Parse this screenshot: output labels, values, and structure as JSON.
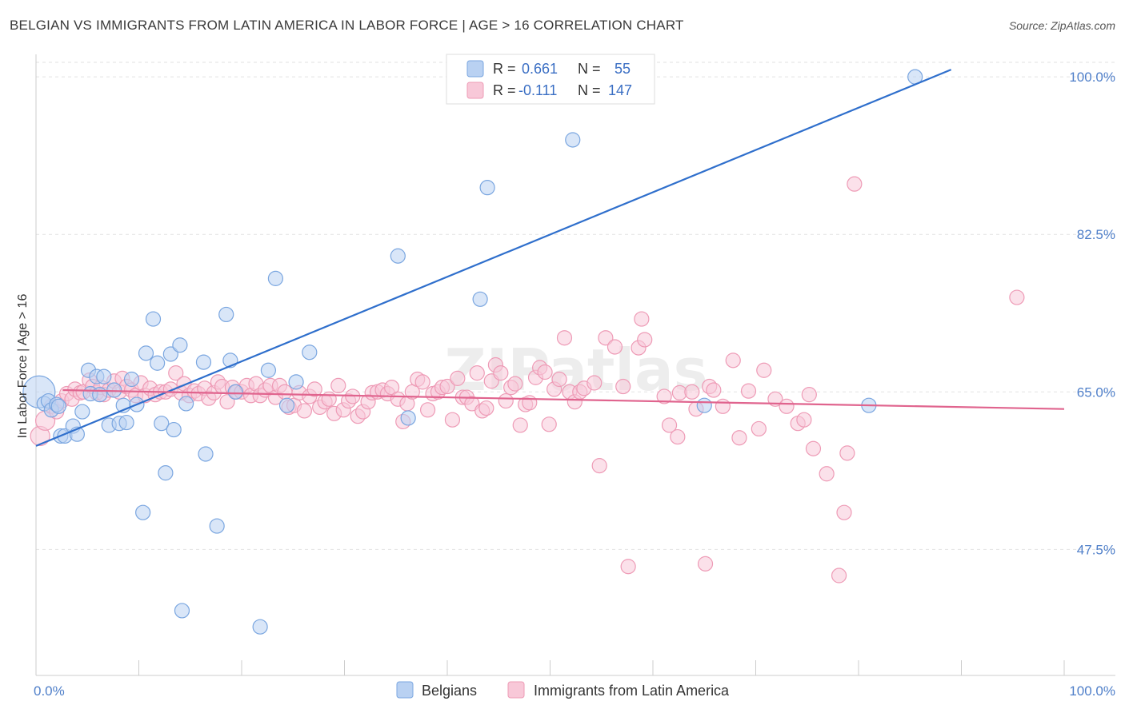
{
  "title": "BELGIAN VS IMMIGRANTS FROM LATIN AMERICA IN LABOR FORCE | AGE > 16 CORRELATION CHART",
  "source": "Source: ZipAtlas.com",
  "watermark": "ZIPatlas",
  "chart_data": {
    "type": "scatter",
    "title": "BELGIAN VS IMMIGRANTS FROM LATIN AMERICA IN LABOR FORCE | AGE > 16 CORRELATION CHART",
    "xlabel": "",
    "ylabel": "In Labor Force | Age > 16",
    "xlim": [
      0,
      100
    ],
    "ylim": [
      33.5,
      102.5
    ],
    "x_tick_labels": [
      "0.0%",
      "100.0%"
    ],
    "y_ticks": [
      47.5,
      65.0,
      82.5,
      100.0
    ],
    "y_tick_labels": [
      "47.5%",
      "65.0%",
      "82.5%",
      "100.0%"
    ],
    "grid": "horizontal dashed",
    "legend_position": "top-center",
    "stats": [
      {
        "r_label": "R =",
        "r": "0.661",
        "n_label": "N =",
        "n": "55"
      },
      {
        "r_label": "R =",
        "r": "-0.111",
        "n_label": "N =",
        "n": "147"
      }
    ],
    "series": [
      {
        "name": "Belgians",
        "color": "#7aa6e0",
        "fill": "#b9d1f2",
        "trend": {
          "x": [
            0,
            89
          ],
          "y": [
            59.0,
            100.8
          ],
          "color": "#2f6fcc"
        },
        "points": [
          [
            0.3,
            65.0
          ],
          [
            0.8,
            63.7
          ],
          [
            1.2,
            64.0
          ],
          [
            1.5,
            63.0
          ],
          [
            2.0,
            63.6
          ],
          [
            2.2,
            63.4
          ],
          [
            2.4,
            60.1
          ],
          [
            2.8,
            60.1
          ],
          [
            3.6,
            61.2
          ],
          [
            4.0,
            60.3
          ],
          [
            4.5,
            62.8
          ],
          [
            5.1,
            67.4
          ],
          [
            5.3,
            64.8
          ],
          [
            5.9,
            66.7
          ],
          [
            6.2,
            64.7
          ],
          [
            6.6,
            66.7
          ],
          [
            7.1,
            61.3
          ],
          [
            7.6,
            65.2
          ],
          [
            8.1,
            61.5
          ],
          [
            8.5,
            63.5
          ],
          [
            8.8,
            61.6
          ],
          [
            9.3,
            66.4
          ],
          [
            9.8,
            63.6
          ],
          [
            10.4,
            51.6
          ],
          [
            10.7,
            69.3
          ],
          [
            11.4,
            73.1
          ],
          [
            11.8,
            68.2
          ],
          [
            12.2,
            61.5
          ],
          [
            12.6,
            56.0
          ],
          [
            13.1,
            69.2
          ],
          [
            13.4,
            60.8
          ],
          [
            14.0,
            70.2
          ],
          [
            14.2,
            40.7
          ],
          [
            14.6,
            63.7
          ],
          [
            16.3,
            68.3
          ],
          [
            16.5,
            58.1
          ],
          [
            17.6,
            50.1
          ],
          [
            18.5,
            73.6
          ],
          [
            18.9,
            68.5
          ],
          [
            19.4,
            65.0
          ],
          [
            21.8,
            38.9
          ],
          [
            22.6,
            67.4
          ],
          [
            23.3,
            77.6
          ],
          [
            24.4,
            63.5
          ],
          [
            25.3,
            66.1
          ],
          [
            26.6,
            69.4
          ],
          [
            35.2,
            80.1
          ],
          [
            36.2,
            62.1
          ],
          [
            43.2,
            75.3
          ],
          [
            43.9,
            87.7
          ],
          [
            52.2,
            93.0
          ],
          [
            65.0,
            63.5
          ],
          [
            81.0,
            63.5
          ],
          [
            85.5,
            100.0
          ],
          [
            47.5,
            101.0
          ]
        ]
      },
      {
        "name": "Immigrants from Latin America",
        "color": "#ee9bb6",
        "fill": "#f8c8d8",
        "trend": {
          "x": [
            2.6,
            100
          ],
          "y": [
            65.2,
            63.1
          ],
          "color": "#e0648e"
        },
        "points": [
          [
            0.4,
            60.1
          ],
          [
            0.9,
            61.8
          ],
          [
            1.5,
            63.4
          ],
          [
            2.0,
            62.8
          ],
          [
            2.5,
            64.0
          ],
          [
            3.0,
            64.8
          ],
          [
            3.5,
            64.2
          ],
          [
            3.8,
            65.3
          ],
          [
            4.3,
            64.9
          ],
          [
            4.6,
            65.0
          ],
          [
            5.2,
            66.3
          ],
          [
            5.5,
            65.6
          ],
          [
            5.9,
            64.9
          ],
          [
            6.3,
            65.5
          ],
          [
            6.6,
            64.7
          ],
          [
            7.1,
            65.2
          ],
          [
            7.6,
            66.2
          ],
          [
            8.1,
            65.0
          ],
          [
            8.4,
            66.5
          ],
          [
            8.8,
            65.6
          ],
          [
            9.3,
            65.2
          ],
          [
            9.7,
            64.6
          ],
          [
            10.2,
            66.0
          ],
          [
            10.6,
            64.6
          ],
          [
            11.1,
            65.4
          ],
          [
            11.6,
            64.7
          ],
          [
            12.1,
            65.0
          ],
          [
            12.6,
            65.0
          ],
          [
            13.1,
            65.3
          ],
          [
            13.6,
            67.1
          ],
          [
            14.1,
            64.9
          ],
          [
            14.4,
            65.9
          ],
          [
            14.9,
            64.6
          ],
          [
            15.4,
            65.1
          ],
          [
            15.8,
            64.8
          ],
          [
            16.4,
            65.4
          ],
          [
            16.8,
            64.3
          ],
          [
            17.3,
            64.9
          ],
          [
            17.7,
            66.1
          ],
          [
            18.1,
            65.6
          ],
          [
            18.6,
            63.9
          ],
          [
            19.1,
            65.5
          ],
          [
            19.5,
            65.0
          ],
          [
            20.0,
            65.0
          ],
          [
            20.5,
            65.7
          ],
          [
            20.9,
            64.6
          ],
          [
            21.4,
            65.9
          ],
          [
            21.8,
            64.6
          ],
          [
            22.3,
            65.2
          ],
          [
            22.8,
            65.7
          ],
          [
            23.3,
            64.4
          ],
          [
            23.7,
            65.7
          ],
          [
            24.2,
            65.0
          ],
          [
            24.6,
            63.3
          ],
          [
            25.1,
            63.5
          ],
          [
            25.6,
            64.9
          ],
          [
            26.1,
            62.9
          ],
          [
            26.6,
            64.5
          ],
          [
            27.1,
            65.3
          ],
          [
            27.6,
            63.3
          ],
          [
            28.1,
            63.9
          ],
          [
            28.5,
            64.2
          ],
          [
            29.0,
            62.6
          ],
          [
            29.4,
            65.7
          ],
          [
            29.9,
            63.0
          ],
          [
            30.4,
            64.0
          ],
          [
            30.8,
            64.5
          ],
          [
            31.3,
            62.3
          ],
          [
            31.8,
            62.8
          ],
          [
            32.3,
            63.9
          ],
          [
            32.7,
            64.9
          ],
          [
            33.2,
            65.0
          ],
          [
            33.7,
            65.2
          ],
          [
            34.2,
            64.8
          ],
          [
            34.6,
            65.5
          ],
          [
            35.2,
            64.2
          ],
          [
            35.7,
            61.7
          ],
          [
            36.1,
            63.7
          ],
          [
            36.6,
            65.0
          ],
          [
            37.1,
            66.4
          ],
          [
            37.6,
            66.1
          ],
          [
            38.1,
            63.0
          ],
          [
            38.6,
            64.8
          ],
          [
            39.1,
            65.0
          ],
          [
            39.5,
            65.5
          ],
          [
            40.0,
            65.6
          ],
          [
            40.5,
            61.9
          ],
          [
            41.0,
            66.5
          ],
          [
            41.5,
            64.4
          ],
          [
            41.9,
            64.4
          ],
          [
            42.4,
            63.7
          ],
          [
            42.9,
            67.1
          ],
          [
            43.4,
            62.9
          ],
          [
            43.8,
            63.2
          ],
          [
            44.3,
            66.2
          ],
          [
            44.7,
            68.0
          ],
          [
            45.2,
            67.1
          ],
          [
            45.7,
            64.0
          ],
          [
            46.2,
            65.5
          ],
          [
            46.6,
            65.9
          ],
          [
            47.1,
            61.3
          ],
          [
            47.6,
            63.6
          ],
          [
            48.0,
            63.8
          ],
          [
            48.6,
            66.6
          ],
          [
            49.0,
            67.7
          ],
          [
            49.5,
            67.2
          ],
          [
            49.9,
            61.4
          ],
          [
            50.4,
            65.3
          ],
          [
            50.9,
            66.4
          ],
          [
            51.4,
            71.0
          ],
          [
            51.9,
            65.0
          ],
          [
            52.4,
            63.9
          ],
          [
            52.9,
            65.0
          ],
          [
            53.3,
            65.4
          ],
          [
            54.3,
            66.0
          ],
          [
            54.8,
            56.8
          ],
          [
            55.4,
            71.0
          ],
          [
            56.3,
            70.0
          ],
          [
            57.1,
            65.6
          ],
          [
            57.6,
            45.6
          ],
          [
            58.6,
            69.9
          ],
          [
            58.9,
            73.1
          ],
          [
            59.2,
            70.8
          ],
          [
            61.1,
            64.5
          ],
          [
            61.6,
            61.3
          ],
          [
            62.4,
            60.0
          ],
          [
            62.6,
            64.9
          ],
          [
            63.8,
            65.0
          ],
          [
            64.2,
            63.1
          ],
          [
            65.1,
            45.9
          ],
          [
            65.5,
            65.6
          ],
          [
            65.9,
            65.2
          ],
          [
            66.8,
            63.4
          ],
          [
            67.8,
            68.5
          ],
          [
            68.4,
            59.9
          ],
          [
            69.3,
            65.1
          ],
          [
            70.3,
            60.9
          ],
          [
            70.8,
            67.4
          ],
          [
            71.9,
            64.2
          ],
          [
            73.0,
            63.4
          ],
          [
            74.1,
            61.5
          ],
          [
            74.7,
            61.9
          ],
          [
            75.2,
            64.7
          ],
          [
            75.6,
            58.7
          ],
          [
            76.9,
            55.9
          ],
          [
            78.1,
            44.6
          ],
          [
            78.6,
            51.6
          ],
          [
            78.9,
            58.2
          ],
          [
            79.6,
            88.1
          ],
          [
            95.4,
            75.5
          ]
        ]
      }
    ]
  }
}
